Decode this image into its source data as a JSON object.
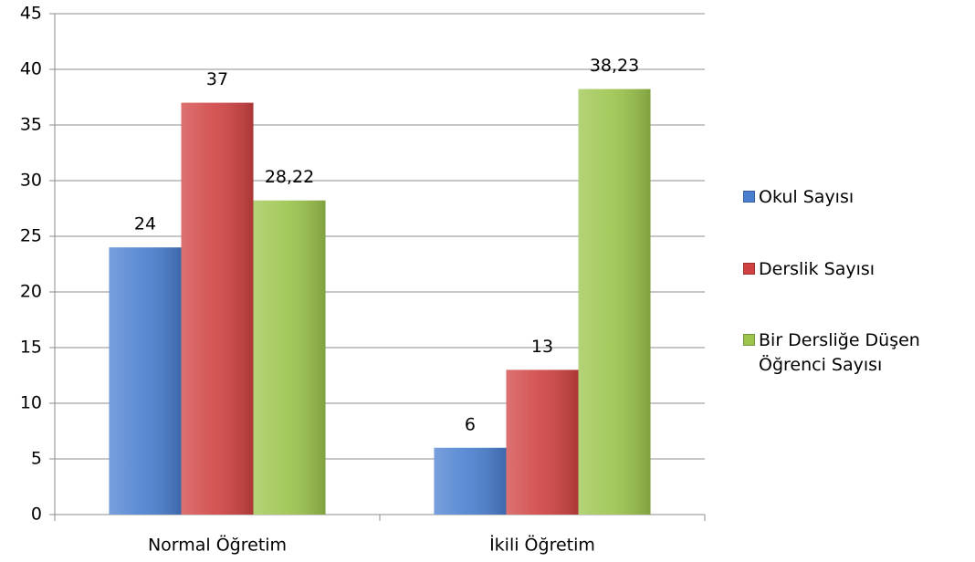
{
  "chart_data": {
    "type": "bar",
    "categories": [
      "Normal Öğretim",
      "İkili Öğretim"
    ],
    "series": [
      {
        "name": "Okul Sayısı",
        "color": "#4a7fd0",
        "values": [
          24,
          6
        ]
      },
      {
        "name": "Derslik Sayısı",
        "color": "#d04242",
        "values": [
          37,
          13
        ]
      },
      {
        "name": "Bir Dersliğe Düşen Öğrenci Sayısı",
        "color": "#9cc44c",
        "values": [
          28.22,
          38.23
        ],
        "value_labels": [
          "28,22",
          "38,23"
        ]
      }
    ],
    "ylim": [
      0,
      45
    ],
    "yticks": [
      0,
      5,
      10,
      15,
      20,
      25,
      30,
      35,
      40,
      45
    ],
    "grid": true,
    "legend": "right"
  }
}
